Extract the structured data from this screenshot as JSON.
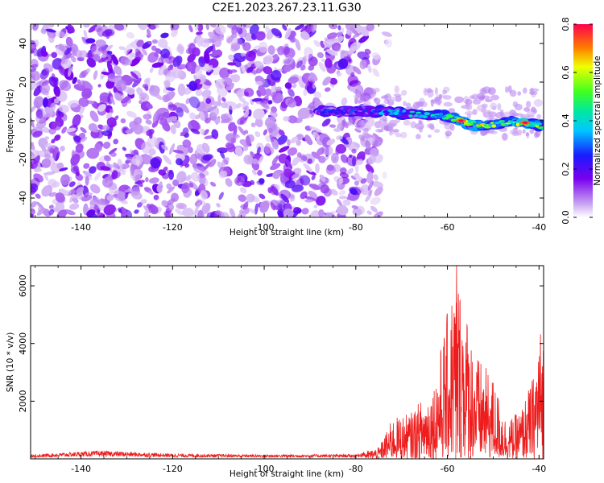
{
  "title": "C2E1.2023.267.23.11.G30",
  "chart_data": [
    {
      "type": "heatmap",
      "xlabel": "Height of straight line (km)",
      "ylabel": "Frequency (Hz)",
      "xlim": [
        -151,
        -39
      ],
      "ylim": [
        -50,
        50
      ],
      "x_ticks": [
        -140,
        -120,
        -100,
        -80,
        -60,
        -40
      ],
      "y_ticks": [
        -40,
        -20,
        0,
        20,
        40
      ],
      "colorbar": {
        "label": "Normalized spectral amplitude",
        "range": [
          0,
          0.8
        ],
        "ticks": [
          0.0,
          0.2,
          0.4,
          0.6,
          0.8
        ]
      },
      "features": {
        "noise_region_x": [
          -151,
          -76
        ],
        "noise_amplitude": 0.1,
        "signal_track": [
          {
            "x": -88,
            "y": 5,
            "amp": 0.3
          },
          {
            "x": -84,
            "y": 5,
            "amp": 0.25
          },
          {
            "x": -76,
            "y": 5,
            "amp": 0.35
          },
          {
            "x": -70,
            "y": 4,
            "amp": 0.4
          },
          {
            "x": -65,
            "y": 3,
            "amp": 0.45
          },
          {
            "x": -60,
            "y": 2,
            "amp": 0.5
          },
          {
            "x": -57,
            "y": 0,
            "amp": 0.75
          },
          {
            "x": -53,
            "y": -3,
            "amp": 0.65
          },
          {
            "x": -47,
            "y": -1,
            "amp": 0.55
          },
          {
            "x": -43,
            "y": -1,
            "amp": 0.8
          },
          {
            "x": -39,
            "y": -3,
            "amp": 0.45
          }
        ]
      }
    },
    {
      "type": "line",
      "xlabel": "Height of straight line (km)",
      "ylabel": "SNR (10 * v/v)",
      "xlim": [
        -151,
        -39
      ],
      "ylim": [
        0,
        6700
      ],
      "x_ticks": [
        -140,
        -120,
        -100,
        -80,
        -60,
        -40
      ],
      "y_ticks": [
        2000,
        4000,
        6000
      ],
      "color": "#ee1c1c",
      "envelope": [
        {
          "x": -151,
          "y": 150
        },
        {
          "x": -136,
          "y": 280
        },
        {
          "x": -120,
          "y": 180
        },
        {
          "x": -100,
          "y": 150
        },
        {
          "x": -80,
          "y": 160
        },
        {
          "x": -75,
          "y": 400
        },
        {
          "x": -72,
          "y": 1400
        },
        {
          "x": -68,
          "y": 1600
        },
        {
          "x": -65,
          "y": 2200
        },
        {
          "x": -63,
          "y": 2600
        },
        {
          "x": -60,
          "y": 5100
        },
        {
          "x": -58,
          "y": 6700
        },
        {
          "x": -56,
          "y": 5300
        },
        {
          "x": -54,
          "y": 3700
        },
        {
          "x": -50,
          "y": 2800
        },
        {
          "x": -47,
          "y": 1300
        },
        {
          "x": -44,
          "y": 1700
        },
        {
          "x": -41,
          "y": 3000
        },
        {
          "x": -40,
          "y": 4600
        },
        {
          "x": -39,
          "y": 4500
        }
      ]
    }
  ]
}
